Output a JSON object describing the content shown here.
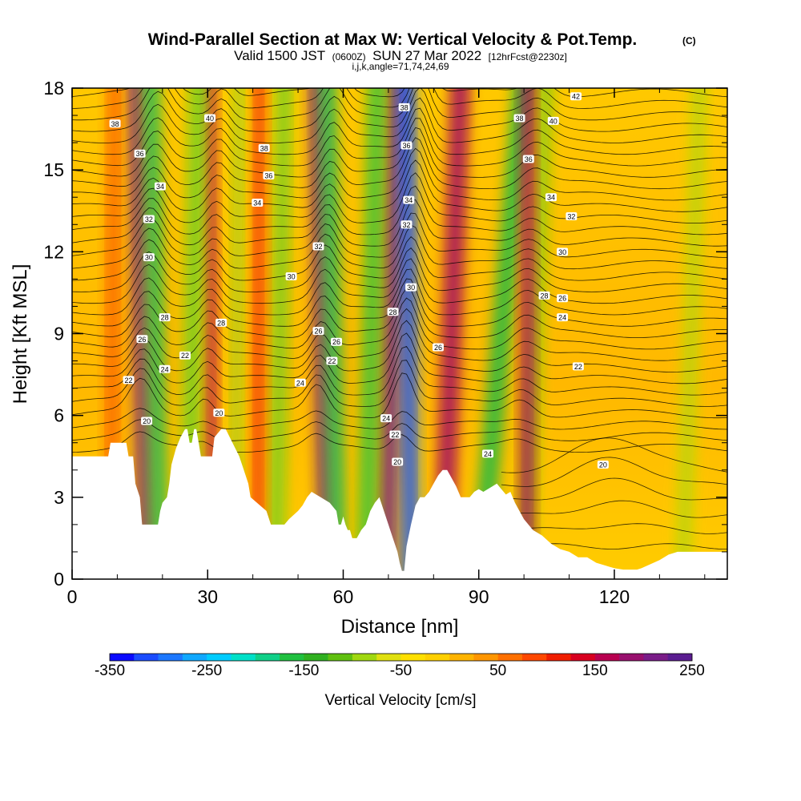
{
  "chart_data": {
    "type": "heatmap",
    "title": "Wind-Parallel Section at Max W: Vertical Velocity & Pot.Temp.",
    "copyright_mark": "(C)",
    "subtitle_parts": {
      "valid_prefix": "Valid 1500 JST",
      "utc": "(0600Z)",
      "date": "SUN 27 Mar 2022",
      "forecast": "[12hrFcst@2230z]"
    },
    "subtitle2": "i,j,k,angle=71,74,24,69",
    "xlabel": "Distance [nm]",
    "ylabel": "Height [Kft MSL]",
    "xlim": [
      0,
      145
    ],
    "ylim": [
      0,
      18
    ],
    "x_ticks": [
      "0",
      "30",
      "60",
      "90",
      "120"
    ],
    "x_tick_values": [
      0,
      30,
      60,
      90,
      120
    ],
    "y_ticks": [
      "0",
      "3",
      "6",
      "9",
      "12",
      "15",
      "18"
    ],
    "y_tick_values": [
      0,
      3,
      6,
      9,
      12,
      15,
      18
    ],
    "grid": false,
    "colorbar": {
      "title": "Vertical Velocity [cm/s]",
      "labels": [
        "-350",
        "-250",
        "-150",
        "-50",
        "50",
        "150",
        "250"
      ],
      "label_values": [
        -350,
        -250,
        -150,
        -50,
        50,
        150,
        250
      ],
      "min": -350,
      "max": 250,
      "colors": [
        "#0a0aff",
        "#1a4cff",
        "#1c78ff",
        "#10a8ff",
        "#00ccff",
        "#00e0c8",
        "#10d088",
        "#20c040",
        "#30b020",
        "#60c010",
        "#a0d810",
        "#e0e010",
        "#ffe000",
        "#ffd000",
        "#ffb400",
        "#ff9600",
        "#ff7000",
        "#ff4800",
        "#f01e00",
        "#d80020",
        "#b80050",
        "#98106e",
        "#7a1c88",
        "#5a1c90"
      ]
    },
    "terrain_profile": {
      "x": [
        0,
        8,
        8.5,
        12,
        12.5,
        13.5,
        14,
        15,
        15.5,
        16,
        16.5,
        19,
        19.5,
        20,
        21,
        21.5,
        22,
        23,
        23.5,
        24,
        25,
        25.5,
        26,
        26.5,
        27,
        27.5,
        28,
        28.5,
        31,
        31.5,
        33,
        34,
        37,
        38,
        39,
        39.5,
        43,
        44,
        45,
        46,
        47,
        48,
        50,
        51,
        52,
        53,
        55,
        57,
        58.5,
        59,
        59.5,
        60,
        60.5,
        61,
        61.5,
        62,
        63,
        64,
        65,
        66,
        67,
        68,
        70,
        71,
        72,
        72.5,
        73,
        73.5,
        74,
        75,
        76,
        77,
        78,
        79,
        80,
        81,
        82,
        83,
        84,
        85,
        86,
        87,
        88,
        89,
        90,
        91,
        92,
        93,
        94,
        95,
        96,
        97,
        98,
        99,
        100,
        102,
        104,
        106,
        108,
        110,
        112,
        114,
        116,
        118,
        120,
        122,
        124,
        125,
        126,
        130,
        132,
        134,
        136,
        140,
        145
      ],
      "y": [
        4.5,
        4.5,
        5.0,
        5.0,
        4.5,
        4.5,
        3.5,
        3.0,
        2.0,
        2.0,
        2.0,
        2.0,
        2.5,
        2.8,
        3.0,
        3.5,
        4.2,
        4.8,
        5.0,
        5.2,
        5.5,
        5.5,
        5.0,
        5.0,
        5.5,
        5.5,
        5.0,
        4.5,
        4.5,
        5.2,
        5.5,
        5.5,
        4.5,
        4.0,
        3.5,
        3.0,
        2.5,
        2.0,
        2.0,
        2.0,
        2.0,
        2.2,
        2.5,
        2.7,
        3.0,
        3.2,
        3.0,
        2.8,
        2.5,
        2.0,
        2.0,
        2.3,
        2.0,
        1.8,
        1.8,
        1.5,
        1.5,
        1.8,
        2.0,
        2.5,
        2.8,
        3.0,
        2.0,
        1.5,
        1.0,
        0.6,
        0.3,
        0.3,
        1.2,
        2.0,
        2.7,
        3.0,
        3.0,
        3.2,
        3.5,
        3.8,
        4.0,
        4.0,
        3.7,
        3.4,
        3.0,
        3.0,
        3.0,
        3.2,
        3.3,
        3.2,
        3.3,
        3.4,
        3.5,
        3.3,
        3.1,
        3.2,
        2.8,
        2.5,
        2.2,
        1.8,
        1.6,
        1.3,
        1.1,
        1.0,
        0.8,
        0.8,
        0.6,
        0.5,
        0.4,
        0.35,
        0.35,
        0.35,
        0.4,
        0.7,
        0.9,
        1.0,
        1.0,
        1.0,
        1.0
      ]
    },
    "vertical_velocity_bands": [
      {
        "x_bottom": 16.5,
        "x_top": 14,
        "w": 220,
        "width_nm": 2.5
      },
      {
        "x_bottom": 19.5,
        "x_top": 17.5,
        "w": -150,
        "width_nm": 3.0
      },
      {
        "x_bottom": 31.0,
        "x_top": 30.5,
        "w": 150,
        "width_nm": 2.0
      },
      {
        "x_bottom": 25.5,
        "x_top": 28.0,
        "w": -100,
        "width_nm": 3.5
      },
      {
        "x_bottom": 56.5,
        "x_top": 54.0,
        "w": 220,
        "width_nm": 2.5
      },
      {
        "x_bottom": 59.0,
        "x_top": 56.5,
        "w": -150,
        "width_nm": 3.0
      },
      {
        "x_bottom": 45.0,
        "x_top": 47.0,
        "w": -100,
        "width_nm": 3.0
      },
      {
        "x_bottom": 69.5,
        "x_top": 72.0,
        "w": 200,
        "width_nm": 3.0
      },
      {
        "x_bottom": 75.0,
        "x_top": 74.0,
        "w": -300,
        "width_nm": 3.0
      },
      {
        "x_bottom": 65.0,
        "x_top": 67.5,
        "w": -120,
        "width_nm": 3.5
      },
      {
        "x_bottom": 82.0,
        "x_top": 86.0,
        "w": 160,
        "width_nm": 3.5
      },
      {
        "x_bottom": 90.0,
        "x_top": 100.0,
        "w": -130,
        "width_nm": 3.5
      },
      {
        "x_bottom": 100.0,
        "x_top": 105.0,
        "w": -80,
        "width_nm": 2.5
      },
      {
        "x_bottom": 100.5,
        "x_top": 101.0,
        "w": 160,
        "width_nm": 2.5
      },
      {
        "x_bottom": 8.5,
        "x_top": 9.5,
        "w": 70,
        "width_nm": 2.5
      },
      {
        "x_bottom": 41.0,
        "x_top": 41.5,
        "w": 90,
        "width_nm": 2.5
      },
      {
        "x_bottom": 36.0,
        "x_top": 37.0,
        "w": -70,
        "width_nm": 2.5
      },
      {
        "x_bottom": 135.0,
        "x_top": 139.0,
        "w": -60,
        "width_nm": 3.0
      }
    ],
    "theta_contour_labels": [
      {
        "x": 9.5,
        "y": 16.7,
        "text": "38"
      },
      {
        "x": 15.0,
        "y": 15.6,
        "text": "36"
      },
      {
        "x": 19.5,
        "y": 14.4,
        "text": "34"
      },
      {
        "x": 17.0,
        "y": 13.2,
        "text": "32"
      },
      {
        "x": 17.0,
        "y": 11.8,
        "text": "30"
      },
      {
        "x": 20.5,
        "y": 9.6,
        "text": "28"
      },
      {
        "x": 15.5,
        "y": 8.8,
        "text": "26"
      },
      {
        "x": 25.0,
        "y": 8.2,
        "text": "22"
      },
      {
        "x": 20.5,
        "y": 7.7,
        "text": "24"
      },
      {
        "x": 12.5,
        "y": 7.3,
        "text": "22"
      },
      {
        "x": 16.5,
        "y": 5.8,
        "text": "20"
      },
      {
        "x": 30.5,
        "y": 16.9,
        "text": "40"
      },
      {
        "x": 42.5,
        "y": 15.8,
        "text": "38"
      },
      {
        "x": 43.5,
        "y": 14.8,
        "text": "36"
      },
      {
        "x": 41.0,
        "y": 13.8,
        "text": "34"
      },
      {
        "x": 48.5,
        "y": 11.1,
        "text": "30"
      },
      {
        "x": 33.0,
        "y": 9.4,
        "text": "28"
      },
      {
        "x": 32.5,
        "y": 6.1,
        "text": "20"
      },
      {
        "x": 50.5,
        "y": 7.2,
        "text": "24"
      },
      {
        "x": 54.5,
        "y": 12.2,
        "text": "32"
      },
      {
        "x": 54.5,
        "y": 9.1,
        "text": "26"
      },
      {
        "x": 58.5,
        "y": 8.7,
        "text": "26"
      },
      {
        "x": 57.5,
        "y": 8.0,
        "text": "22"
      },
      {
        "x": 73.5,
        "y": 17.3,
        "text": "38"
      },
      {
        "x": 74.0,
        "y": 15.9,
        "text": "36"
      },
      {
        "x": 74.5,
        "y": 13.9,
        "text": "34"
      },
      {
        "x": 74.0,
        "y": 13.0,
        "text": "32"
      },
      {
        "x": 75.0,
        "y": 10.7,
        "text": "30"
      },
      {
        "x": 71.0,
        "y": 9.8,
        "text": "28"
      },
      {
        "x": 81.0,
        "y": 8.5,
        "text": "26"
      },
      {
        "x": 69.5,
        "y": 5.9,
        "text": "24"
      },
      {
        "x": 71.5,
        "y": 5.3,
        "text": "22"
      },
      {
        "x": 72.0,
        "y": 4.3,
        "text": "20"
      },
      {
        "x": 92.0,
        "y": 4.6,
        "text": "24"
      },
      {
        "x": 99.0,
        "y": 16.9,
        "text": "38"
      },
      {
        "x": 106.5,
        "y": 16.8,
        "text": "40"
      },
      {
        "x": 111.5,
        "y": 17.7,
        "text": "42"
      },
      {
        "x": 101.0,
        "y": 15.4,
        "text": "36"
      },
      {
        "x": 106.0,
        "y": 14.0,
        "text": "34"
      },
      {
        "x": 110.5,
        "y": 13.3,
        "text": "32"
      },
      {
        "x": 108.5,
        "y": 12.0,
        "text": "30"
      },
      {
        "x": 104.5,
        "y": 10.4,
        "text": "28"
      },
      {
        "x": 108.5,
        "y": 10.3,
        "text": "26"
      },
      {
        "x": 108.5,
        "y": 9.6,
        "text": "24"
      },
      {
        "x": 112.0,
        "y": 7.8,
        "text": "22"
      },
      {
        "x": 117.5,
        "y": 4.2,
        "text": "20"
      }
    ]
  }
}
